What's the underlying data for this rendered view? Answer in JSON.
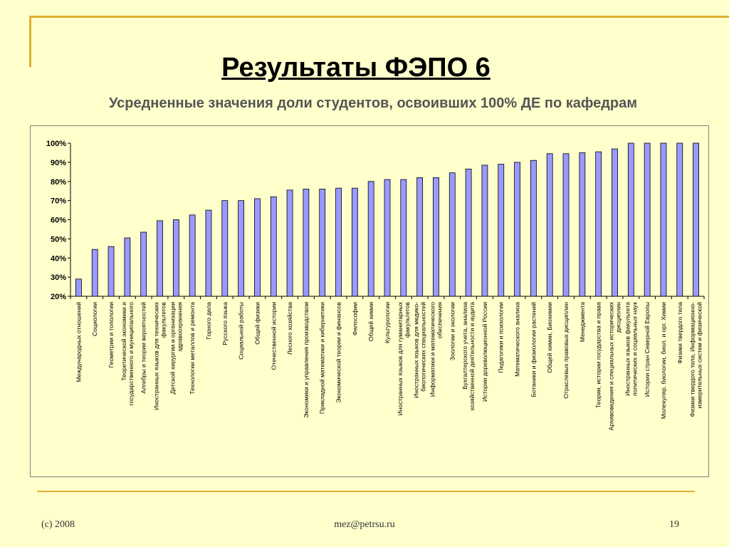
{
  "slide": {
    "title": "Результаты ФЭПО 6",
    "subtitle": "Усредненные значения доли студентов, освоивших 100% ДЕ по кафедрам",
    "footer_left": "(c) 2008",
    "footer_center": "mez@petrsu.ru",
    "footer_right": "19"
  },
  "colors": {
    "background": "#ffffcc",
    "accent_line": "#e0b030",
    "bar_fill": "#9999ff",
    "bar_stroke": "#000000"
  },
  "chart_data": {
    "type": "bar",
    "ylim": [
      20,
      100
    ],
    "yticks": [
      "20%",
      "30%",
      "40%",
      "50%",
      "60%",
      "70%",
      "80%",
      "90%",
      "100%"
    ],
    "grid": false,
    "legend": "none",
    "categories": [
      [
        "Международных отношений"
      ],
      [
        "Социологии"
      ],
      [
        "Геометрии и топологии"
      ],
      [
        "Теоретической экономики и",
        "государственного и муниципального"
      ],
      [
        "Алгебры и теории вероятностей"
      ],
      [
        "Иностранных языков для технических",
        "факультетов"
      ],
      [
        "Детской хирургии и организации",
        "здравоохранения"
      ],
      [
        "Технологии металлов и ремонта"
      ],
      [
        "Горного дела"
      ],
      [
        "Русского языка"
      ],
      [
        "Социальной работы"
      ],
      [
        "Общей физики"
      ],
      [
        "Отечественной истории"
      ],
      [
        "Лесного хозяйства"
      ],
      [
        "Экономики и управления производством"
      ],
      [
        "Прикладной математики и кибернетики"
      ],
      [
        "Экономической теории и финансов"
      ],
      [
        "Философии"
      ],
      [
        "Общей химии"
      ],
      [
        "Культурологии"
      ],
      [
        "Иностранных языков для гуманитарных",
        "факультетов"
      ],
      [
        "Иностранных языков для медико-",
        "биологических специальностей"
      ],
      [
        "Информатики и математического",
        "обеспечения"
      ],
      [
        "Зоологии и экологии"
      ],
      [
        "Бухгалтерского учета, анализа",
        "хозяйственной деятельности и аудита"
      ],
      [
        "Истории дореволюционной России"
      ],
      [
        "Педагогики и психологии"
      ],
      [
        "Математического анализа"
      ],
      [
        "Ботаники и физиологии растений"
      ],
      [
        "Общей химии, Биохимии"
      ],
      [
        "Отраслевых правовых дисциплин"
      ],
      [
        "Менеджмента"
      ],
      [
        "Теории, истории государства и права"
      ],
      [
        "Архивоведения и специальных исторических",
        "дисциплин"
      ],
      [
        "Иностранных языков факультета",
        "политических и социальных наук"
      ],
      [
        "Истории стран Северной Европы"
      ],
      [
        "Молекуляр. биологии, биол. и орг. Химии"
      ],
      [
        "Физики твердого тела"
      ],
      [
        "Физики твердого тела, Информационно-",
        "измерительных систем и физической"
      ]
    ],
    "values": [
      29,
      44.5,
      46,
      50.5,
      53.5,
      59.5,
      60,
      62.5,
      65,
      70,
      70,
      71,
      72,
      75.5,
      76,
      76,
      76.5,
      76.5,
      80,
      81,
      81,
      82,
      82,
      84.5,
      86.5,
      88.5,
      89,
      90,
      91,
      94.5,
      94.5,
      95,
      95.5,
      97,
      100,
      100,
      100,
      100,
      100
    ]
  }
}
